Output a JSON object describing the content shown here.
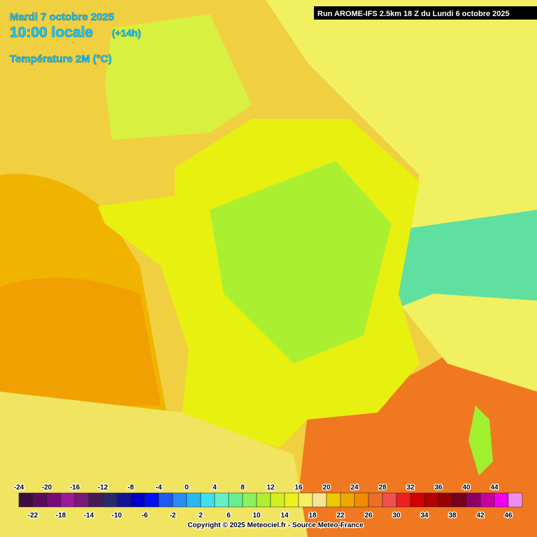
{
  "header": {
    "date": "Mardi 7 octobre 2025",
    "time": "10:00 locale",
    "offset": "(+14h)",
    "parameter": "Température 2M (°C)",
    "run": "Run AROME-IFS 2.5km 18 Z du Lundi 6 octobre 2025"
  },
  "legend": {
    "ticks": [
      -24,
      -22,
      -20,
      -18,
      -16,
      -14,
      -12,
      -10,
      -8,
      -6,
      -4,
      -2,
      0,
      2,
      4,
      6,
      8,
      10,
      12,
      14,
      16,
      18,
      20,
      22,
      24,
      26,
      28,
      30,
      32,
      34,
      36,
      38,
      40,
      42,
      44,
      46
    ],
    "colors": [
      "#3c0c3c",
      "#5a0c5a",
      "#7a0a7a",
      "#9a1a9a",
      "#781a78",
      "#461c52",
      "#2a2a6e",
      "#141496",
      "#0000c8",
      "#0014f0",
      "#1e5af0",
      "#2a8cf0",
      "#2ab8f0",
      "#40e0f0",
      "#64f0c4",
      "#64f090",
      "#8cf060",
      "#aaf030",
      "#d2f01e",
      "#f0f01e",
      "#f5f064",
      "#f5e496",
      "#f0c800",
      "#f0a800",
      "#f08c00",
      "#f06c28",
      "#f05050",
      "#f01e1e",
      "#d20000",
      "#b40000",
      "#960000",
      "#78001e",
      "#8c0064",
      "#c800a0",
      "#f000f0",
      "#f08cf0"
    ]
  },
  "footer": {
    "copyright": "Copyright © 2025 Meteociel.fr - Source Meteo-France"
  }
}
